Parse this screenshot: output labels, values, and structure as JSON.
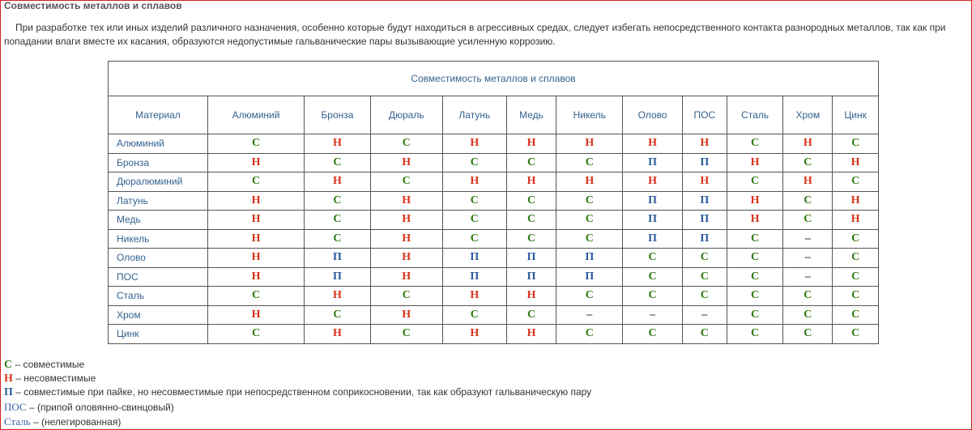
{
  "header": {
    "title": "Совместимость металлов и сплавов"
  },
  "intro": [
    "При разработке тех или иных изделий различного назначения, особенно которые будут находиться в агрессивных средах, следует избегать непосредственного контакта разнородных металлов, так как при",
    "попадании влаги вместе их касания, образуются недопустимые гальванические пары вызывающие усиленную коррозию."
  ],
  "table": {
    "caption": "Совместимость металлов и сплавов",
    "columns": [
      "Материал",
      "Алюминий",
      "Бронза",
      "Дюраль",
      "Латунь",
      "Медь",
      "Никель",
      "Олово",
      "ПОС",
      "Сталь",
      "Хром",
      "Цинк"
    ],
    "rows": [
      [
        "Алюминий",
        "С",
        "Н",
        "С",
        "Н",
        "Н",
        "Н",
        "Н",
        "Н",
        "С",
        "Н",
        "С"
      ],
      [
        "Бронза",
        "Н",
        "С",
        "Н",
        "С",
        "С",
        "С",
        "П",
        "П",
        "Н",
        "С",
        "Н"
      ],
      [
        "Дюралюминий",
        "С",
        "Н",
        "С",
        "Н",
        "Н",
        "Н",
        "Н",
        "Н",
        "С",
        "Н",
        "С"
      ],
      [
        "Латунь",
        "Н",
        "С",
        "Н",
        "С",
        "С",
        "С",
        "П",
        "П",
        "Н",
        "С",
        "Н"
      ],
      [
        "Медь",
        "Н",
        "С",
        "Н",
        "С",
        "С",
        "С",
        "П",
        "П",
        "Н",
        "С",
        "Н"
      ],
      [
        "Никель",
        "Н",
        "С",
        "Н",
        "С",
        "С",
        "С",
        "П",
        "П",
        "С",
        "–",
        "С"
      ],
      [
        "Олово",
        "Н",
        "П",
        "Н",
        "П",
        "П",
        "П",
        "С",
        "С",
        "С",
        "–",
        "С"
      ],
      [
        "ПОС",
        "Н",
        "П",
        "Н",
        "П",
        "П",
        "П",
        "С",
        "С",
        "С",
        "–",
        "С"
      ],
      [
        "Сталь",
        "С",
        "Н",
        "С",
        "Н",
        "Н",
        "С",
        "С",
        "С",
        "С",
        "С",
        "С"
      ],
      [
        "Хром",
        "Н",
        "С",
        "Н",
        "С",
        "С",
        "–",
        "–",
        "–",
        "С",
        "С",
        "С"
      ],
      [
        "Цинк",
        "С",
        "Н",
        "С",
        "Н",
        "Н",
        "С",
        "С",
        "С",
        "С",
        "С",
        "С"
      ]
    ]
  },
  "legend": [
    {
      "symbol": "С",
      "text": "– совместимые",
      "color": "#2f7a12"
    },
    {
      "symbol": "Н",
      "text": "– несовместимые",
      "color": "#d8321a"
    },
    {
      "symbol": "П",
      "text": "– совместимые при пайке, но несовместимые при непосредственном соприкосновении, так как образуют гальваническую пару",
      "color": "#2a5a9c"
    },
    {
      "symbol": "ПОС",
      "text": "– (припой оловянно-свинцовый)",
      "color": "#3a64a8"
    },
    {
      "symbol": "Сталь",
      "text": "– (нелегированная)",
      "color": "#3a64a8"
    }
  ]
}
